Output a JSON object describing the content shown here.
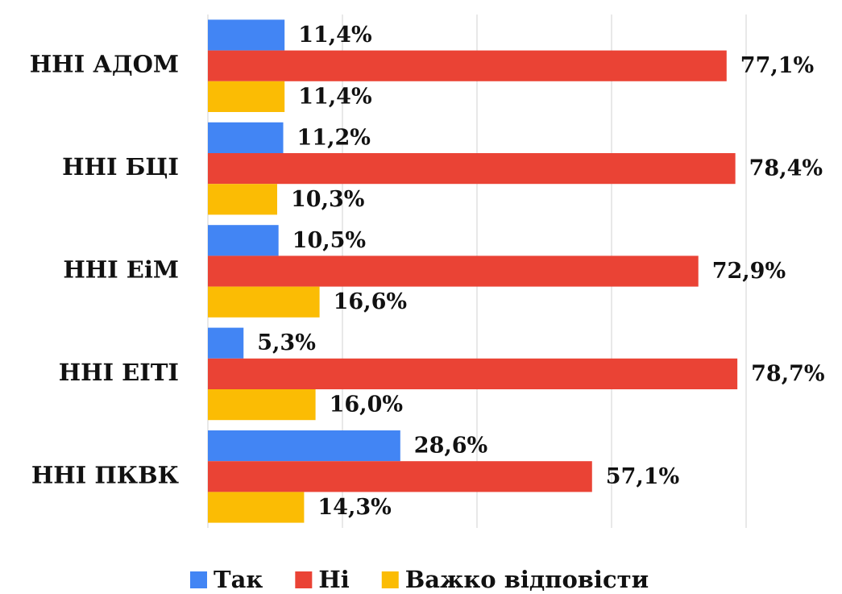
{
  "chart_data": {
    "type": "hbar",
    "categories": [
      "ННІ АДОМ",
      "ННІ БЦІ",
      "ННІ ЕіМ",
      "ННІ ЕІТІ",
      "ННІ ПКВК"
    ],
    "series": [
      {
        "name": "Так",
        "color": "#4285f4",
        "values": [
          11.4,
          11.2,
          10.5,
          5.3,
          28.6
        ],
        "value_labels": [
          "11,4%",
          "11,2%",
          "10,5%",
          "5,3%",
          "28,6%"
        ]
      },
      {
        "name": "Ні",
        "color": "#ea4335",
        "values": [
          77.1,
          78.4,
          72.9,
          78.7,
          57.1
        ],
        "value_labels": [
          "77,1%",
          "78,4%",
          "72,9%",
          "78,7%",
          "57,1%"
        ]
      },
      {
        "name": "Важко відповісти",
        "color": "#fbbc04",
        "values": [
          11.4,
          10.3,
          16.6,
          16.0,
          14.3
        ],
        "value_labels": [
          "11,4%",
          "10,3%",
          "16,6%",
          "16,0%",
          "14,3%"
        ]
      }
    ],
    "xlim": [
      0,
      80
    ],
    "xticks": [
      0,
      20,
      40,
      60,
      80
    ],
    "grid": true,
    "legend": "bottom"
  }
}
